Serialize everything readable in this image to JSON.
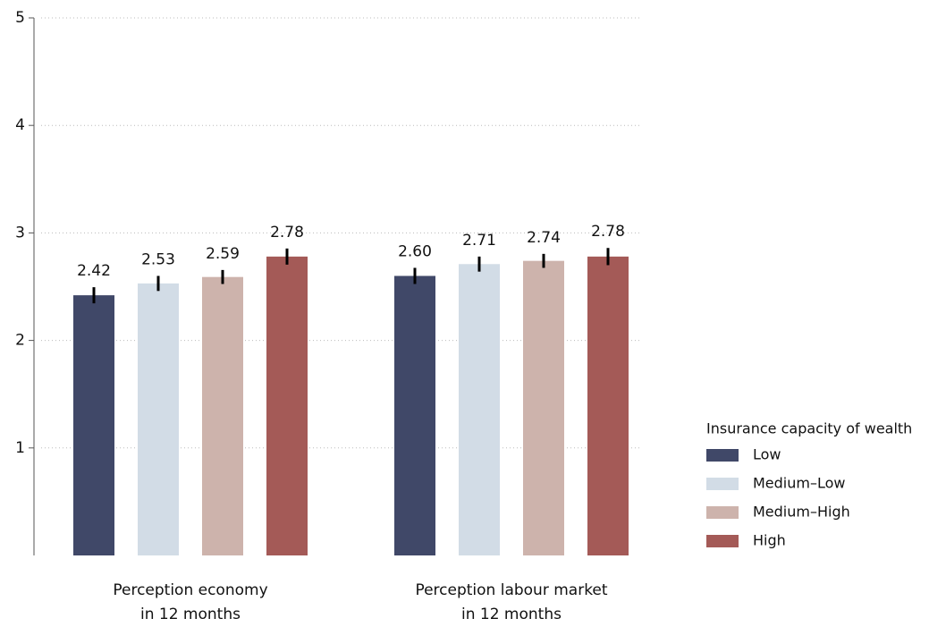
{
  "chart_data": {
    "type": "bar",
    "categories": [
      [
        "Perception economy",
        "in 12 months"
      ],
      [
        "Perception labour market",
        "in 12 months"
      ]
    ],
    "series": [
      {
        "name": "Low",
        "color": "#404868",
        "values": [
          2.42,
          2.6
        ],
        "value_labels": [
          "2.42",
          "2.60"
        ],
        "errors": [
          0.075,
          0.075
        ]
      },
      {
        "name": "Medium–Low",
        "color": "#d2dce6",
        "values": [
          2.53,
          2.71
        ],
        "value_labels": [
          "2.53",
          "2.71"
        ],
        "errors": [
          0.07,
          0.07
        ]
      },
      {
        "name": "Medium–High",
        "color": "#cdb3ac",
        "values": [
          2.59,
          2.74
        ],
        "value_labels": [
          "2.59",
          "2.74"
        ],
        "errors": [
          0.065,
          0.065
        ]
      },
      {
        "name": "High",
        "color": "#a45a57",
        "values": [
          2.78,
          2.78
        ],
        "value_labels": [
          "2.78",
          "2.78"
        ],
        "errors": [
          0.075,
          0.08
        ]
      }
    ],
    "legend_title": "Insurance capacity of wealth",
    "ylim": [
      0,
      5
    ],
    "yticks": [
      1,
      2,
      3,
      4,
      5
    ],
    "grid": true,
    "legend": "right"
  }
}
